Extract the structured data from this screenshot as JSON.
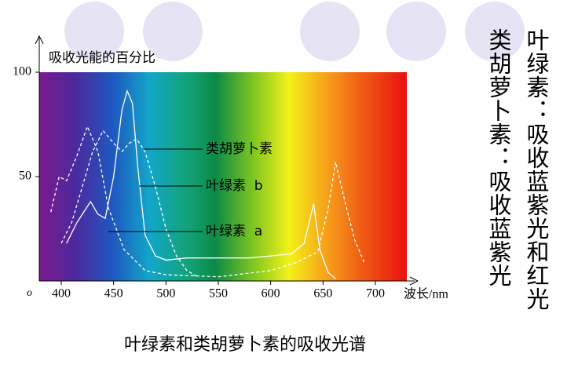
{
  "chart_data": {
    "type": "line",
    "y_label": "吸收光能的百分比",
    "x_label": "波长/nm",
    "origin_label": "o",
    "caption": "叶绿素和类胡萝卜素的吸收光谱",
    "annotations": [
      "叶绿素：吸收蓝紫光和红光",
      "类胡萝卜素：吸收蓝紫光"
    ],
    "xlim": [
      379,
      730
    ],
    "ylim": [
      0,
      100
    ],
    "xticks": [
      400,
      450,
      500,
      550,
      600,
      650,
      700
    ],
    "yticks": [
      50,
      100
    ],
    "series": [
      {
        "name": "类胡萝卜素",
        "color": "#ffffff",
        "dashed": true,
        "x": [
          400,
          410,
          420,
          430,
          440,
          450,
          458,
          465,
          472,
          480,
          490,
          500,
          510,
          520,
          530
        ],
        "values": [
          18,
          28,
          45,
          62,
          72,
          66,
          62,
          66,
          68,
          62,
          45,
          25,
          12,
          5,
          2
        ]
      },
      {
        "name": "叶绿素  b",
        "color": "#ffffff",
        "dashed": false,
        "x": [
          405,
          415,
          428,
          435,
          442,
          450,
          458,
          463,
          468,
          473,
          480,
          490,
          500,
          520,
          550,
          580,
          600,
          620,
          632,
          641,
          647,
          655,
          662
        ],
        "values": [
          18,
          28,
          38,
          32,
          30,
          50,
          82,
          91,
          85,
          55,
          22,
          12,
          10,
          11,
          11,
          11,
          12,
          13,
          18,
          37,
          15,
          4,
          1
        ]
      },
      {
        "name": "叶绿素  a",
        "color": "#ffffff",
        "dashed": true,
        "x": [
          390,
          398,
          405,
          415,
          425,
          435,
          445,
          460,
          480,
          500,
          550,
          600,
          625,
          645,
          655,
          662,
          670,
          680,
          690
        ],
        "values": [
          33,
          50,
          48,
          60,
          74,
          62,
          35,
          15,
          5,
          3,
          2,
          5,
          9,
          14,
          35,
          57,
          40,
          20,
          8
        ]
      }
    ]
  }
}
